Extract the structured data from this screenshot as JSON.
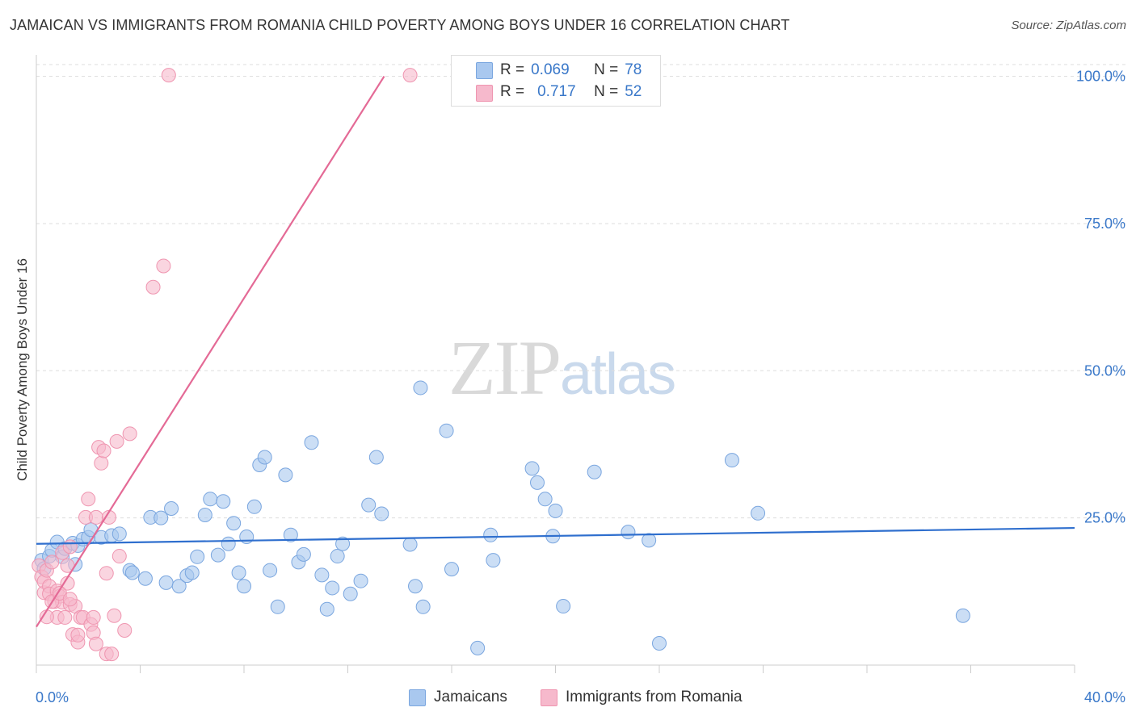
{
  "title": "JAMAICAN VS IMMIGRANTS FROM ROMANIA CHILD POVERTY AMONG BOYS UNDER 16 CORRELATION CHART",
  "source": "Source: ZipAtlas.com",
  "watermark": {
    "zip": "ZIP",
    "atlas": "atlas"
  },
  "legend_top": {
    "rows": [
      {
        "r_label": "R =",
        "r_value": "0.069",
        "n_label": "N =",
        "n_value": "78"
      },
      {
        "r_label": "R =",
        "r_value": "0.717",
        "n_label": "N =",
        "n_value": "52"
      }
    ]
  },
  "legend_bottom": {
    "series1": "Jamaicans",
    "series2": "Immigrants from Romania"
  },
  "colors": {
    "blue_fill": "#a9c8ef",
    "blue_stroke": "#7aa6df",
    "blue_line": "#2f6fce",
    "pink_fill": "#f6b9cc",
    "pink_stroke": "#ef95b0",
    "pink_line": "#e46a96",
    "axis_label": "#3a78c9",
    "grid": "#dddddd"
  },
  "chart_data": {
    "type": "scatter",
    "title": "JAMAICAN VS IMMIGRANTS FROM ROMANIA CHILD POVERTY AMONG BOYS UNDER 16 CORRELATION CHART",
    "xlabel": "",
    "ylabel": "Child Poverty Among Boys Under 16",
    "xlim": [
      0,
      40
    ],
    "ylim": [
      0,
      102
    ],
    "x_tick_labels": [
      "0.0%",
      "40.0%"
    ],
    "y_ticks": [
      25,
      50,
      75,
      100
    ],
    "y_tick_labels": [
      "25.0%",
      "50.0%",
      "75.0%",
      "100.0%"
    ],
    "grid": true,
    "legend_position": "top-center",
    "series": [
      {
        "name": "Jamaicans",
        "r": 0.069,
        "n": 78,
        "trend": {
          "x": [
            0,
            40
          ],
          "y": [
            20.6,
            23.3
          ]
        },
        "points": [
          [
            0.2,
            17.8
          ],
          [
            0.3,
            16.4
          ],
          [
            0.5,
            18.5
          ],
          [
            0.6,
            19.5
          ],
          [
            0.8,
            20.9
          ],
          [
            1.0,
            18.4
          ],
          [
            1.1,
            19.8
          ],
          [
            1.4,
            20.7
          ],
          [
            1.5,
            17.1
          ],
          [
            1.6,
            20.3
          ],
          [
            1.8,
            21.4
          ],
          [
            2.0,
            21.7
          ],
          [
            2.1,
            23.0
          ],
          [
            2.5,
            21.7
          ],
          [
            2.9,
            22.0
          ],
          [
            3.2,
            22.3
          ],
          [
            3.6,
            16.1
          ],
          [
            3.7,
            15.7
          ],
          [
            4.2,
            14.7
          ],
          [
            4.4,
            25.1
          ],
          [
            4.8,
            25.0
          ],
          [
            5.0,
            14.0
          ],
          [
            5.2,
            26.6
          ],
          [
            5.5,
            13.4
          ],
          [
            5.8,
            15.2
          ],
          [
            6.0,
            15.7
          ],
          [
            6.2,
            18.4
          ],
          [
            6.5,
            25.5
          ],
          [
            6.7,
            28.2
          ],
          [
            7.0,
            18.7
          ],
          [
            7.2,
            27.8
          ],
          [
            7.4,
            20.6
          ],
          [
            7.6,
            24.1
          ],
          [
            7.8,
            15.7
          ],
          [
            8.0,
            13.4
          ],
          [
            8.1,
            21.8
          ],
          [
            8.4,
            26.9
          ],
          [
            8.6,
            34.0
          ],
          [
            8.8,
            35.3
          ],
          [
            9.0,
            16.1
          ],
          [
            9.3,
            9.9
          ],
          [
            9.6,
            32.3
          ],
          [
            9.8,
            22.1
          ],
          [
            10.1,
            17.5
          ],
          [
            10.3,
            18.8
          ],
          [
            10.6,
            37.8
          ],
          [
            11.0,
            15.3
          ],
          [
            11.2,
            9.5
          ],
          [
            11.4,
            13.1
          ],
          [
            11.6,
            18.5
          ],
          [
            11.8,
            20.6
          ],
          [
            12.1,
            12.1
          ],
          [
            12.5,
            14.3
          ],
          [
            12.8,
            27.2
          ],
          [
            13.1,
            35.3
          ],
          [
            13.3,
            25.7
          ],
          [
            14.4,
            20.5
          ],
          [
            14.6,
            13.4
          ],
          [
            14.8,
            47.1
          ],
          [
            14.9,
            9.9
          ],
          [
            15.8,
            39.8
          ],
          [
            16.0,
            16.3
          ],
          [
            17.0,
            2.9
          ],
          [
            17.5,
            22.1
          ],
          [
            17.6,
            17.8
          ],
          [
            19.1,
            33.4
          ],
          [
            19.3,
            31.0
          ],
          [
            19.6,
            28.2
          ],
          [
            19.9,
            21.9
          ],
          [
            20.0,
            26.2
          ],
          [
            20.3,
            10.0
          ],
          [
            21.5,
            32.8
          ],
          [
            22.8,
            22.6
          ],
          [
            23.6,
            21.2
          ],
          [
            24.0,
            3.7
          ],
          [
            26.8,
            34.8
          ],
          [
            27.8,
            25.8
          ],
          [
            35.7,
            8.4
          ]
        ]
      },
      {
        "name": "Immigrants from Romania",
        "r": 0.717,
        "n": 52,
        "trend": {
          "x": [
            0,
            13.4
          ],
          "y": [
            6.5,
            100
          ]
        },
        "points": [
          [
            0.1,
            16.9
          ],
          [
            0.2,
            15.0
          ],
          [
            0.3,
            12.3
          ],
          [
            0.3,
            14.2
          ],
          [
            0.4,
            16.1
          ],
          [
            0.5,
            13.4
          ],
          [
            0.5,
            12.1
          ],
          [
            0.6,
            17.5
          ],
          [
            0.7,
            10.8
          ],
          [
            0.8,
            12.6
          ],
          [
            0.8,
            8.1
          ],
          [
            0.9,
            11.7
          ],
          [
            1.0,
            19.1
          ],
          [
            1.0,
            10.7
          ],
          [
            1.1,
            8.1
          ],
          [
            1.2,
            13.9
          ],
          [
            1.2,
            16.9
          ],
          [
            1.3,
            10.3
          ],
          [
            1.3,
            20.1
          ],
          [
            1.4,
            5.2
          ],
          [
            1.5,
            10.0
          ],
          [
            1.6,
            3.9
          ],
          [
            1.7,
            8.1
          ],
          [
            1.8,
            8.1
          ],
          [
            1.9,
            25.1
          ],
          [
            2.0,
            28.2
          ],
          [
            2.1,
            6.9
          ],
          [
            2.2,
            5.5
          ],
          [
            2.2,
            8.1
          ],
          [
            2.3,
            25.1
          ],
          [
            2.4,
            37.0
          ],
          [
            2.5,
            34.3
          ],
          [
            2.6,
            36.4
          ],
          [
            2.7,
            1.9
          ],
          [
            2.7,
            15.6
          ],
          [
            2.8,
            25.1
          ],
          [
            2.9,
            1.9
          ],
          [
            3.0,
            8.4
          ],
          [
            3.1,
            38.0
          ],
          [
            3.2,
            18.5
          ],
          [
            3.4,
            5.9
          ],
          [
            3.6,
            39.3
          ],
          [
            4.5,
            64.2
          ],
          [
            4.9,
            67.8
          ],
          [
            5.1,
            100.2
          ],
          [
            14.4,
            100.2
          ],
          [
            0.6,
            10.8
          ],
          [
            0.9,
            12.2
          ],
          [
            1.6,
            5.1
          ],
          [
            2.3,
            3.6
          ],
          [
            0.4,
            8.2
          ],
          [
            1.3,
            11.2
          ]
        ]
      }
    ]
  }
}
